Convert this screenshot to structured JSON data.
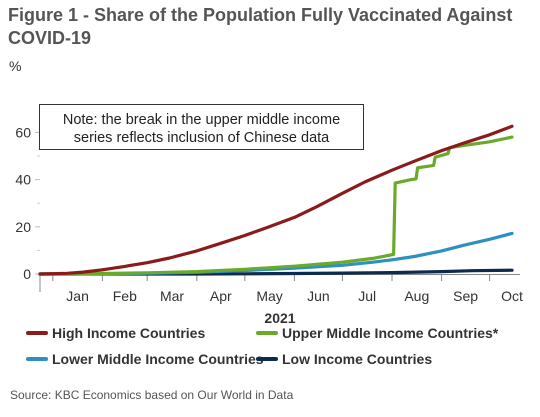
{
  "title": "Figure 1 - Share of the Population Fully Vaccinated Against COVID-19",
  "unit_label": "%",
  "source": "Source: KBC Economics based on Our World in Data",
  "chart_data": {
    "type": "line",
    "title": "Figure 1 - Share of the Population Fully Vaccinated Against COVID-19",
    "ylabel": "%",
    "xlabel": "2021",
    "x_range": [
      "2020-12-24",
      "2021-10-20"
    ],
    "x_tick_labels": [
      "Jan",
      "Feb",
      "Mar",
      "Apr",
      "May",
      "Jun",
      "Jul",
      "Aug",
      "Sep",
      "Oct"
    ],
    "ylim": [
      0,
      70
    ],
    "y_ticks": [
      0,
      20,
      40,
      60
    ],
    "grid": false,
    "legend_position": "bottom",
    "annotation": {
      "lines": [
        "Note: the break in the upper middle income",
        "series reflects inclusion of Chinese data"
      ]
    },
    "series": [
      {
        "name": "High Income Countries",
        "color": "#8b1a1a",
        "points": [
          [
            "2020-12-24",
            0
          ],
          [
            "2021-01-10",
            0.3
          ],
          [
            "2021-01-20",
            0.8
          ],
          [
            "2021-02-01",
            1.8
          ],
          [
            "2021-02-15",
            3.2
          ],
          [
            "2021-03-01",
            4.8
          ],
          [
            "2021-03-15",
            6.8
          ],
          [
            "2021-04-01",
            9.8
          ],
          [
            "2021-04-15",
            12.8
          ],
          [
            "2021-05-01",
            16.3
          ],
          [
            "2021-05-15",
            19.7
          ],
          [
            "2021-06-01",
            24.0
          ],
          [
            "2021-06-15",
            28.5
          ],
          [
            "2021-07-01",
            34.2
          ],
          [
            "2021-07-15",
            39.0
          ],
          [
            "2021-08-01",
            44.0
          ],
          [
            "2021-08-15",
            47.8
          ],
          [
            "2021-09-01",
            52.3
          ],
          [
            "2021-09-15",
            55.5
          ],
          [
            "2021-10-01",
            59.0
          ],
          [
            "2021-10-15",
            62.6
          ]
        ]
      },
      {
        "name": "Upper Middle Income Countries*",
        "color": "#6aaa2a",
        "points": [
          [
            "2020-12-24",
            0
          ],
          [
            "2021-01-15",
            0
          ],
          [
            "2021-02-01",
            0.2
          ],
          [
            "2021-03-01",
            0.5
          ],
          [
            "2021-04-01",
            1.0
          ],
          [
            "2021-05-01",
            2.0
          ],
          [
            "2021-06-01",
            3.3
          ],
          [
            "2021-07-01",
            5.0
          ],
          [
            "2021-07-20",
            6.6
          ],
          [
            "2021-08-02",
            8.3
          ],
          [
            "2021-08-03",
            38.5
          ],
          [
            "2021-08-13",
            40.0
          ],
          [
            "2021-08-16",
            40.3
          ],
          [
            "2021-08-17",
            45.0
          ],
          [
            "2021-08-27",
            46.0
          ],
          [
            "2021-08-28",
            49.5
          ],
          [
            "2021-09-05",
            51.0
          ],
          [
            "2021-09-06",
            53.5
          ],
          [
            "2021-09-15",
            54.5
          ],
          [
            "2021-10-01",
            56.0
          ],
          [
            "2021-10-15",
            58.0
          ]
        ]
      },
      {
        "name": "Lower Middle Income Countries",
        "color": "#2e8fc0",
        "points": [
          [
            "2020-12-24",
            0
          ],
          [
            "2021-02-01",
            0.1
          ],
          [
            "2021-03-01",
            0.3
          ],
          [
            "2021-04-01",
            0.7
          ],
          [
            "2021-05-01",
            1.5
          ],
          [
            "2021-06-01",
            2.5
          ],
          [
            "2021-07-01",
            3.7
          ],
          [
            "2021-07-20",
            5.0
          ],
          [
            "2021-08-01",
            6.0
          ],
          [
            "2021-08-15",
            7.4
          ],
          [
            "2021-09-01",
            9.8
          ],
          [
            "2021-09-15",
            12.2
          ],
          [
            "2021-10-01",
            14.7
          ],
          [
            "2021-10-15",
            17.2
          ]
        ]
      },
      {
        "name": "Low Income Countries",
        "color": "#0e2a4e",
        "points": [
          [
            "2020-12-24",
            0
          ],
          [
            "2021-04-01",
            0
          ],
          [
            "2021-05-01",
            0.1
          ],
          [
            "2021-06-01",
            0.2
          ],
          [
            "2021-07-01",
            0.4
          ],
          [
            "2021-08-01",
            0.6
          ],
          [
            "2021-09-01",
            1.0
          ],
          [
            "2021-09-20",
            1.4
          ],
          [
            "2021-10-15",
            1.6
          ]
        ]
      }
    ]
  }
}
